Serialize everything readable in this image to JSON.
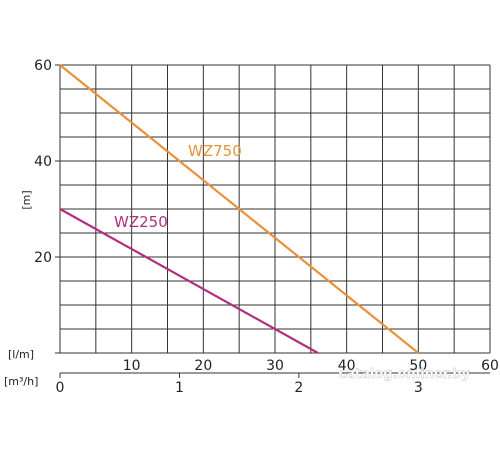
{
  "chart_data": {
    "type": "line",
    "ylabel": "[m]",
    "y_ticks": [
      "20",
      "40",
      "60"
    ],
    "ylim": [
      0,
      60
    ],
    "x_axes": [
      {
        "unit": "[l/m]",
        "ticks": [
          "10",
          "20",
          "30",
          "40",
          "50",
          "60"
        ],
        "lim": [
          0,
          60
        ]
      },
      {
        "unit": "[m³/h]",
        "ticks": [
          "0",
          "1",
          "2",
          "3"
        ],
        "lim": [
          0,
          3.6
        ]
      }
    ],
    "grid": true,
    "series": [
      {
        "name": "WZ750",
        "color": "#e8913a",
        "x": [
          0,
          50
        ],
        "y": [
          60,
          0
        ]
      },
      {
        "name": "WZ250",
        "color": "#b0307e",
        "x": [
          0,
          36
        ],
        "y": [
          30,
          0
        ]
      }
    ]
  },
  "watermark": "catalog.onliner.by"
}
